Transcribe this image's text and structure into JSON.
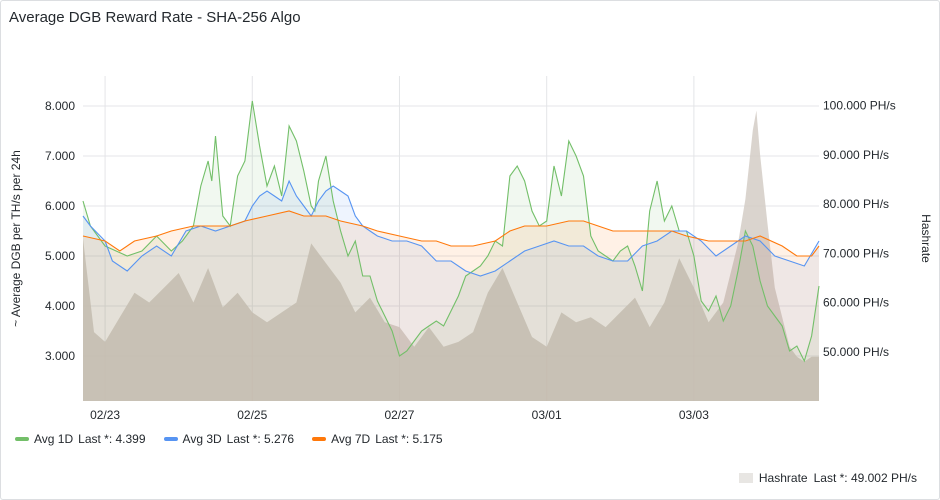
{
  "panel": {
    "title": "Average DGB Reward Rate - SHA-256 Algo"
  },
  "chart_data": {
    "type": "line",
    "title": "Average DGB Reward Rate - SHA-256 Algo",
    "ylabel": "~ Average DGB per TH/s per 24h",
    "y2label": "Hashrate",
    "ylim": [
      2.1,
      8.6
    ],
    "y2lim": [
      40,
      106
    ],
    "xlim": [
      0,
      10
    ],
    "x_ticks": [
      {
        "x": 0.3,
        "label": "02/23"
      },
      {
        "x": 2.3,
        "label": "02/25"
      },
      {
        "x": 4.3,
        "label": "02/27"
      },
      {
        "x": 6.3,
        "label": "03/01"
      },
      {
        "x": 8.3,
        "label": "03/03"
      }
    ],
    "y_ticks": [
      "3.000",
      "4.000",
      "5.000",
      "6.000",
      "7.000",
      "8.000"
    ],
    "y2_ticks": [
      "50.000 PH/s",
      "60.000 PH/s",
      "70.000 PH/s",
      "80.000 PH/s",
      "90.000 PH/s",
      "100.000 PH/s"
    ],
    "grid": true,
    "legend_position": "bottom",
    "series": [
      {
        "name": "Avg 1D",
        "last_label": "Last *: 4.399",
        "color": "#73bf69",
        "axis": "left",
        "fill": true,
        "points": [
          [
            0.0,
            6.1
          ],
          [
            0.1,
            5.6
          ],
          [
            0.3,
            5.2
          ],
          [
            0.6,
            5.0
          ],
          [
            0.8,
            5.1
          ],
          [
            1.0,
            5.4
          ],
          [
            1.2,
            5.1
          ],
          [
            1.35,
            5.3
          ],
          [
            1.5,
            5.6
          ],
          [
            1.6,
            6.4
          ],
          [
            1.7,
            6.9
          ],
          [
            1.75,
            6.5
          ],
          [
            1.8,
            7.4
          ],
          [
            1.9,
            5.8
          ],
          [
            2.0,
            5.6
          ],
          [
            2.1,
            6.6
          ],
          [
            2.2,
            6.9
          ],
          [
            2.25,
            7.5
          ],
          [
            2.3,
            8.1
          ],
          [
            2.4,
            7.2
          ],
          [
            2.5,
            6.4
          ],
          [
            2.6,
            6.8
          ],
          [
            2.7,
            6.2
          ],
          [
            2.8,
            7.6
          ],
          [
            2.9,
            7.3
          ],
          [
            3.0,
            6.7
          ],
          [
            3.1,
            6.0
          ],
          [
            3.15,
            5.9
          ],
          [
            3.2,
            6.5
          ],
          [
            3.3,
            7.0
          ],
          [
            3.4,
            6.1
          ],
          [
            3.5,
            5.5
          ],
          [
            3.6,
            5.0
          ],
          [
            3.7,
            5.3
          ],
          [
            3.8,
            4.6
          ],
          [
            3.9,
            4.6
          ],
          [
            4.0,
            4.1
          ],
          [
            4.1,
            3.8
          ],
          [
            4.2,
            3.5
          ],
          [
            4.3,
            3.0
          ],
          [
            4.4,
            3.1
          ],
          [
            4.5,
            3.3
          ],
          [
            4.6,
            3.5
          ],
          [
            4.7,
            3.6
          ],
          [
            4.8,
            3.7
          ],
          [
            4.9,
            3.6
          ],
          [
            5.0,
            3.9
          ],
          [
            5.1,
            4.2
          ],
          [
            5.2,
            4.6
          ],
          [
            5.3,
            4.7
          ],
          [
            5.4,
            4.8
          ],
          [
            5.5,
            5.0
          ],
          [
            5.6,
            5.3
          ],
          [
            5.7,
            5.2
          ],
          [
            5.8,
            6.6
          ],
          [
            5.9,
            6.8
          ],
          [
            6.0,
            6.5
          ],
          [
            6.1,
            5.9
          ],
          [
            6.2,
            5.6
          ],
          [
            6.3,
            5.7
          ],
          [
            6.4,
            6.8
          ],
          [
            6.5,
            6.2
          ],
          [
            6.6,
            7.3
          ],
          [
            6.7,
            7.0
          ],
          [
            6.8,
            6.6
          ],
          [
            6.9,
            5.4
          ],
          [
            7.0,
            5.1
          ],
          [
            7.1,
            5.0
          ],
          [
            7.2,
            4.9
          ],
          [
            7.3,
            5.1
          ],
          [
            7.4,
            5.2
          ],
          [
            7.5,
            4.8
          ],
          [
            7.6,
            4.3
          ],
          [
            7.7,
            5.9
          ],
          [
            7.8,
            6.5
          ],
          [
            7.9,
            5.7
          ],
          [
            8.0,
            6.0
          ],
          [
            8.1,
            5.5
          ],
          [
            8.2,
            5.5
          ],
          [
            8.3,
            5.0
          ],
          [
            8.4,
            4.1
          ],
          [
            8.5,
            3.9
          ],
          [
            8.6,
            4.2
          ],
          [
            8.7,
            3.7
          ],
          [
            8.8,
            4.0
          ],
          [
            8.9,
            4.7
          ],
          [
            9.0,
            5.5
          ],
          [
            9.1,
            5.2
          ],
          [
            9.2,
            4.5
          ],
          [
            9.3,
            4.0
          ],
          [
            9.4,
            3.8
          ],
          [
            9.5,
            3.6
          ],
          [
            9.6,
            3.1
          ],
          [
            9.7,
            3.2
          ],
          [
            9.8,
            2.9
          ],
          [
            9.9,
            3.4
          ],
          [
            10.0,
            4.4
          ]
        ]
      },
      {
        "name": "Avg 3D",
        "last_label": "Last *: 5.276",
        "color": "#5794f2",
        "axis": "left",
        "fill": true,
        "points": [
          [
            0.0,
            5.8
          ],
          [
            0.1,
            5.6
          ],
          [
            0.3,
            5.3
          ],
          [
            0.4,
            4.9
          ],
          [
            0.6,
            4.7
          ],
          [
            0.8,
            5.0
          ],
          [
            1.0,
            5.2
          ],
          [
            1.2,
            5.0
          ],
          [
            1.4,
            5.5
          ],
          [
            1.6,
            5.6
          ],
          [
            1.8,
            5.5
          ],
          [
            2.0,
            5.6
          ],
          [
            2.2,
            5.7
          ],
          [
            2.3,
            6.0
          ],
          [
            2.4,
            6.2
          ],
          [
            2.5,
            6.3
          ],
          [
            2.6,
            6.2
          ],
          [
            2.7,
            6.1
          ],
          [
            2.8,
            6.5
          ],
          [
            2.9,
            6.2
          ],
          [
            3.0,
            6.0
          ],
          [
            3.1,
            5.8
          ],
          [
            3.2,
            6.1
          ],
          [
            3.3,
            6.3
          ],
          [
            3.4,
            6.4
          ],
          [
            3.5,
            6.3
          ],
          [
            3.6,
            6.2
          ],
          [
            3.7,
            5.8
          ],
          [
            3.8,
            5.6
          ],
          [
            3.9,
            5.5
          ],
          [
            4.0,
            5.4
          ],
          [
            4.2,
            5.3
          ],
          [
            4.4,
            5.3
          ],
          [
            4.6,
            5.2
          ],
          [
            4.8,
            4.9
          ],
          [
            5.0,
            4.9
          ],
          [
            5.2,
            4.7
          ],
          [
            5.4,
            4.6
          ],
          [
            5.6,
            4.7
          ],
          [
            5.8,
            4.9
          ],
          [
            6.0,
            5.1
          ],
          [
            6.2,
            5.2
          ],
          [
            6.4,
            5.3
          ],
          [
            6.6,
            5.2
          ],
          [
            6.8,
            5.2
          ],
          [
            7.0,
            5.0
          ],
          [
            7.2,
            4.9
          ],
          [
            7.4,
            4.9
          ],
          [
            7.6,
            5.2
          ],
          [
            7.8,
            5.3
          ],
          [
            8.0,
            5.5
          ],
          [
            8.2,
            5.5
          ],
          [
            8.4,
            5.3
          ],
          [
            8.6,
            5.0
          ],
          [
            8.8,
            5.2
          ],
          [
            9.0,
            5.4
          ],
          [
            9.2,
            5.3
          ],
          [
            9.4,
            5.0
          ],
          [
            9.6,
            4.9
          ],
          [
            9.8,
            4.8
          ],
          [
            10.0,
            5.3
          ]
        ]
      },
      {
        "name": "Avg 7D",
        "last_label": "Last *: 5.175",
        "color": "#ff780a",
        "axis": "left",
        "fill": true,
        "points": [
          [
            0.0,
            5.4
          ],
          [
            0.3,
            5.3
          ],
          [
            0.5,
            5.1
          ],
          [
            0.7,
            5.3
          ],
          [
            1.0,
            5.4
          ],
          [
            1.2,
            5.5
          ],
          [
            1.5,
            5.6
          ],
          [
            1.8,
            5.6
          ],
          [
            2.0,
            5.6
          ],
          [
            2.2,
            5.7
          ],
          [
            2.5,
            5.8
          ],
          [
            2.8,
            5.9
          ],
          [
            3.0,
            5.8
          ],
          [
            3.3,
            5.8
          ],
          [
            3.5,
            5.7
          ],
          [
            3.8,
            5.6
          ],
          [
            4.0,
            5.5
          ],
          [
            4.3,
            5.4
          ],
          [
            4.6,
            5.3
          ],
          [
            4.8,
            5.3
          ],
          [
            5.0,
            5.2
          ],
          [
            5.3,
            5.2
          ],
          [
            5.6,
            5.3
          ],
          [
            5.8,
            5.5
          ],
          [
            6.0,
            5.6
          ],
          [
            6.3,
            5.6
          ],
          [
            6.6,
            5.7
          ],
          [
            6.8,
            5.7
          ],
          [
            7.0,
            5.6
          ],
          [
            7.2,
            5.5
          ],
          [
            7.5,
            5.5
          ],
          [
            7.8,
            5.5
          ],
          [
            8.0,
            5.5
          ],
          [
            8.2,
            5.4
          ],
          [
            8.5,
            5.3
          ],
          [
            8.8,
            5.3
          ],
          [
            9.0,
            5.3
          ],
          [
            9.2,
            5.4
          ],
          [
            9.5,
            5.2
          ],
          [
            9.7,
            5.0
          ],
          [
            9.9,
            5.0
          ],
          [
            10.0,
            5.2
          ]
        ]
      },
      {
        "name": "Hashrate",
        "last_label": "Last *: 49.002 PH/s",
        "color": "#d3cdc5",
        "axis": "right",
        "fill": true,
        "points": [
          [
            0.0,
            73
          ],
          [
            0.15,
            54
          ],
          [
            0.3,
            52
          ],
          [
            0.5,
            57
          ],
          [
            0.7,
            62
          ],
          [
            0.9,
            60
          ],
          [
            1.1,
            63
          ],
          [
            1.3,
            66
          ],
          [
            1.5,
            60
          ],
          [
            1.7,
            67
          ],
          [
            1.9,
            59
          ],
          [
            2.1,
            62
          ],
          [
            2.3,
            58
          ],
          [
            2.5,
            56
          ],
          [
            2.7,
            58
          ],
          [
            2.9,
            60
          ],
          [
            3.1,
            72
          ],
          [
            3.3,
            68
          ],
          [
            3.5,
            64
          ],
          [
            3.7,
            58
          ],
          [
            3.9,
            61
          ],
          [
            4.1,
            56
          ],
          [
            4.3,
            55
          ],
          [
            4.5,
            51
          ],
          [
            4.7,
            55
          ],
          [
            4.9,
            51
          ],
          [
            5.1,
            52
          ],
          [
            5.3,
            54
          ],
          [
            5.5,
            62
          ],
          [
            5.7,
            67
          ],
          [
            5.9,
            60
          ],
          [
            6.1,
            53
          ],
          [
            6.3,
            51
          ],
          [
            6.5,
            58
          ],
          [
            6.7,
            56
          ],
          [
            6.9,
            57
          ],
          [
            7.1,
            55
          ],
          [
            7.3,
            58
          ],
          [
            7.5,
            61
          ],
          [
            7.7,
            55
          ],
          [
            7.9,
            60
          ],
          [
            8.1,
            69
          ],
          [
            8.3,
            63
          ],
          [
            8.5,
            56
          ],
          [
            8.7,
            60
          ],
          [
            8.9,
            72
          ],
          [
            9.0,
            81
          ],
          [
            9.1,
            95
          ],
          [
            9.15,
            99
          ],
          [
            9.2,
            90
          ],
          [
            9.3,
            76
          ],
          [
            9.4,
            63
          ],
          [
            9.5,
            57
          ],
          [
            9.6,
            51
          ],
          [
            9.7,
            49
          ],
          [
            9.8,
            48
          ],
          [
            9.9,
            49
          ],
          [
            10.0,
            49
          ]
        ]
      }
    ]
  }
}
